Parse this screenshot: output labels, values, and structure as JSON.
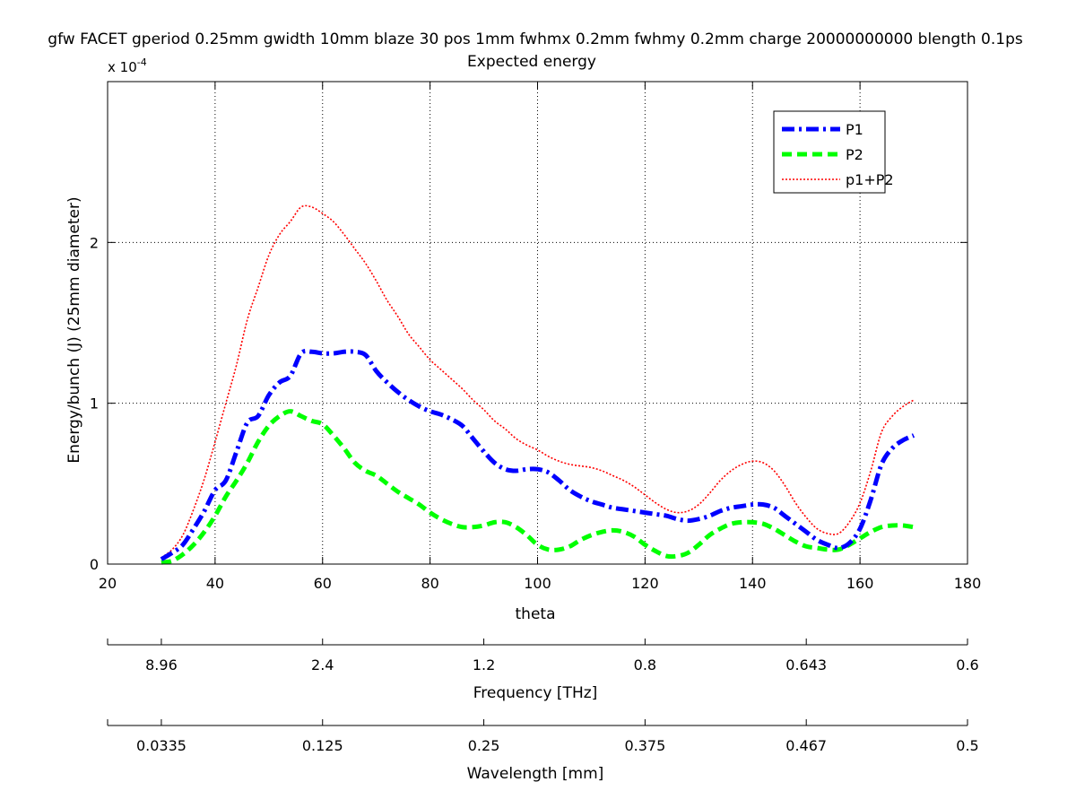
{
  "chart_data": {
    "type": "line",
    "title": "gfw FACET gperiod 0.25mm gwidth 10mm blaze 30 pos 1mm fwhmx 0.2mm fwhmy 0.2mm charge 20000000000 blength 0.1ps",
    "subtitle": "Expected energy",
    "xlabel": "theta",
    "ylabel": "Energy/bunch (J) (25mm diameter)",
    "y_multiplier": {
      "base": "x 10",
      "exponent": "-4"
    },
    "xlim": [
      20,
      180
    ],
    "ylim": [
      0,
      3.0
    ],
    "x_ticks": [
      "20",
      "40",
      "60",
      "80",
      "100",
      "120",
      "140",
      "160",
      "180"
    ],
    "y_ticks": [
      "0",
      "1",
      "2"
    ],
    "grid": true,
    "legend_position": "top-right",
    "series": [
      {
        "name": "P1",
        "color": "#0000ff",
        "style": "dash-dot",
        "x": [
          30,
          32,
          34,
          36,
          38,
          40,
          42,
          44,
          46,
          48,
          50,
          52,
          54,
          56,
          58,
          60,
          62,
          64,
          66,
          68,
          70,
          72,
          74,
          76,
          78,
          80,
          82,
          84,
          86,
          88,
          90,
          92,
          94,
          96,
          98,
          100,
          102,
          104,
          106,
          108,
          110,
          112,
          114,
          116,
          118,
          120,
          122,
          124,
          126,
          128,
          130,
          132,
          134,
          136,
          138,
          140,
          142,
          144,
          146,
          148,
          150,
          152,
          154,
          156,
          158,
          160,
          162,
          164,
          166,
          168,
          170
        ],
        "values": [
          0.03,
          0.07,
          0.12,
          0.22,
          0.33,
          0.46,
          0.52,
          0.7,
          0.88,
          0.92,
          1.05,
          1.13,
          1.17,
          1.31,
          1.32,
          1.31,
          1.31,
          1.32,
          1.32,
          1.3,
          1.2,
          1.13,
          1.07,
          1.02,
          0.98,
          0.95,
          0.93,
          0.9,
          0.86,
          0.78,
          0.7,
          0.63,
          0.59,
          0.58,
          0.59,
          0.59,
          0.57,
          0.52,
          0.46,
          0.42,
          0.39,
          0.37,
          0.35,
          0.34,
          0.33,
          0.32,
          0.31,
          0.3,
          0.28,
          0.27,
          0.28,
          0.3,
          0.33,
          0.35,
          0.36,
          0.37,
          0.37,
          0.35,
          0.3,
          0.25,
          0.2,
          0.15,
          0.12,
          0.1,
          0.13,
          0.22,
          0.4,
          0.62,
          0.72,
          0.77,
          0.8
        ]
      },
      {
        "name": "P2",
        "color": "#00ff00",
        "style": "dashed",
        "x": [
          30,
          32,
          34,
          36,
          38,
          40,
          42,
          44,
          46,
          48,
          50,
          52,
          54,
          56,
          58,
          60,
          62,
          64,
          66,
          68,
          70,
          72,
          74,
          76,
          78,
          80,
          82,
          84,
          86,
          88,
          90,
          92,
          94,
          96,
          98,
          100,
          102,
          104,
          106,
          108,
          110,
          112,
          114,
          116,
          118,
          120,
          122,
          124,
          126,
          128,
          130,
          132,
          134,
          136,
          138,
          140,
          142,
          144,
          146,
          148,
          150,
          152,
          154,
          156,
          158,
          160,
          162,
          164,
          166,
          168,
          170
        ],
        "values": [
          0.01,
          0.02,
          0.06,
          0.12,
          0.2,
          0.3,
          0.42,
          0.52,
          0.63,
          0.76,
          0.86,
          0.92,
          0.95,
          0.92,
          0.89,
          0.87,
          0.8,
          0.72,
          0.63,
          0.58,
          0.55,
          0.5,
          0.45,
          0.41,
          0.37,
          0.32,
          0.28,
          0.25,
          0.23,
          0.23,
          0.24,
          0.26,
          0.26,
          0.23,
          0.18,
          0.12,
          0.09,
          0.09,
          0.11,
          0.15,
          0.18,
          0.2,
          0.21,
          0.2,
          0.17,
          0.12,
          0.08,
          0.05,
          0.05,
          0.07,
          0.12,
          0.18,
          0.22,
          0.25,
          0.26,
          0.26,
          0.25,
          0.22,
          0.18,
          0.14,
          0.11,
          0.1,
          0.09,
          0.09,
          0.12,
          0.16,
          0.2,
          0.23,
          0.24,
          0.24,
          0.23
        ]
      },
      {
        "name": "p1+P2",
        "color": "#ff0000",
        "style": "dotted",
        "x": [
          30,
          32,
          34,
          36,
          38,
          40,
          42,
          44,
          46,
          48,
          50,
          52,
          54,
          56,
          58,
          60,
          62,
          64,
          66,
          68,
          70,
          72,
          74,
          76,
          78,
          80,
          82,
          84,
          86,
          88,
          90,
          92,
          94,
          96,
          98,
          100,
          102,
          104,
          106,
          108,
          110,
          112,
          114,
          116,
          118,
          120,
          122,
          124,
          126,
          128,
          130,
          132,
          134,
          136,
          138,
          140,
          142,
          144,
          146,
          148,
          150,
          152,
          154,
          156,
          158,
          160,
          162,
          164,
          166,
          168,
          170
        ],
        "values": [
          0.04,
          0.09,
          0.18,
          0.34,
          0.53,
          0.76,
          1.0,
          1.24,
          1.52,
          1.72,
          1.92,
          2.05,
          2.13,
          2.22,
          2.22,
          2.18,
          2.13,
          2.05,
          1.96,
          1.87,
          1.76,
          1.64,
          1.54,
          1.43,
          1.35,
          1.27,
          1.21,
          1.15,
          1.09,
          1.02,
          0.96,
          0.89,
          0.84,
          0.78,
          0.74,
          0.71,
          0.67,
          0.64,
          0.62,
          0.61,
          0.6,
          0.58,
          0.55,
          0.52,
          0.48,
          0.43,
          0.38,
          0.34,
          0.32,
          0.33,
          0.37,
          0.44,
          0.52,
          0.58,
          0.62,
          0.64,
          0.63,
          0.58,
          0.49,
          0.38,
          0.29,
          0.22,
          0.19,
          0.19,
          0.26,
          0.38,
          0.58,
          0.82,
          0.92,
          0.98,
          1.02
        ]
      }
    ],
    "secondary_axes": [
      {
        "label": "Frequency [THz]",
        "tick_labels": [
          "8.96",
          "2.4",
          "1.2",
          "0.8",
          "0.643",
          "0.6"
        ],
        "tick_theta": [
          30,
          60,
          90,
          120,
          150,
          180
        ]
      },
      {
        "label": "Wavelength [mm]",
        "tick_labels": [
          "0.0335",
          "0.125",
          "0.25",
          "0.375",
          "0.467",
          "0.5"
        ],
        "tick_theta": [
          30,
          60,
          90,
          120,
          150,
          180
        ]
      }
    ]
  }
}
